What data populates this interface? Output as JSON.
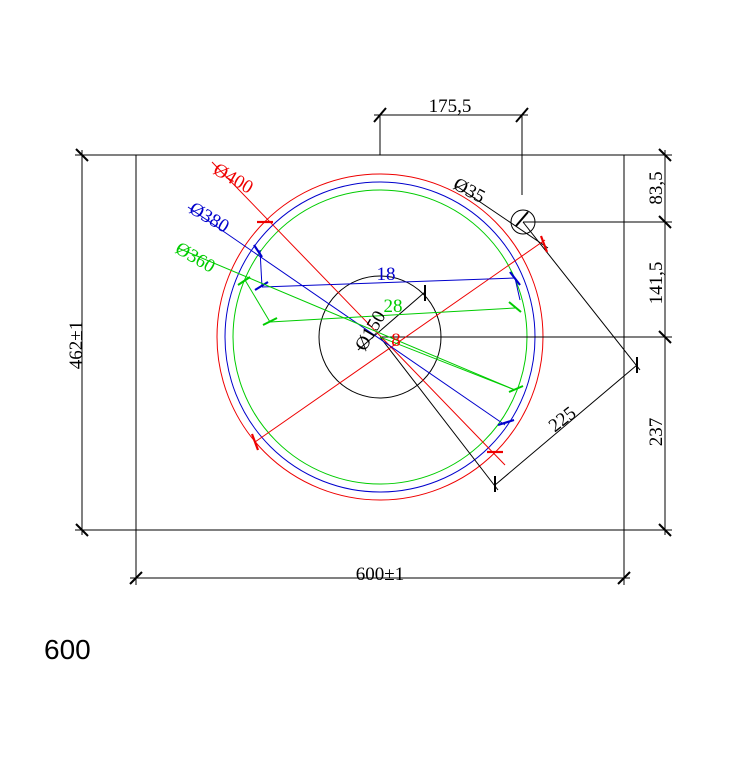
{
  "drawing": {
    "dims": {
      "hole_offset_x": "175,5",
      "hole_diameter": "Ø35",
      "hole_offset_y": "83,5",
      "red_diameter": "Ø400",
      "blue_diameter": "Ø380",
      "green_diameter": "Ø360",
      "blue_depth": "18",
      "green_depth": "28",
      "center_offset_y": "141,5",
      "drain_diameter": "Ø150",
      "red_depth": "8",
      "total_height": "462±1",
      "lower_height": "237",
      "hole_distance": "225",
      "total_width": "600±1"
    },
    "caption": "600"
  }
}
